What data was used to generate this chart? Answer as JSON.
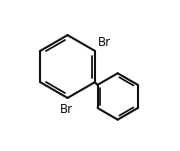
{
  "background": "#ffffff",
  "line_color": "#111111",
  "lw": 1.5,
  "fs": 8.5,
  "fig_w": 1.8,
  "fig_h": 1.51,
  "dpi": 100,
  "inner_off": 0.02,
  "shrink": 0.15,
  "br_label": "Br",
  "lcx": 0.35,
  "lcy": 0.56,
  "lr": 0.21,
  "rcx": 0.685,
  "rcy": 0.36,
  "rr": 0.155
}
